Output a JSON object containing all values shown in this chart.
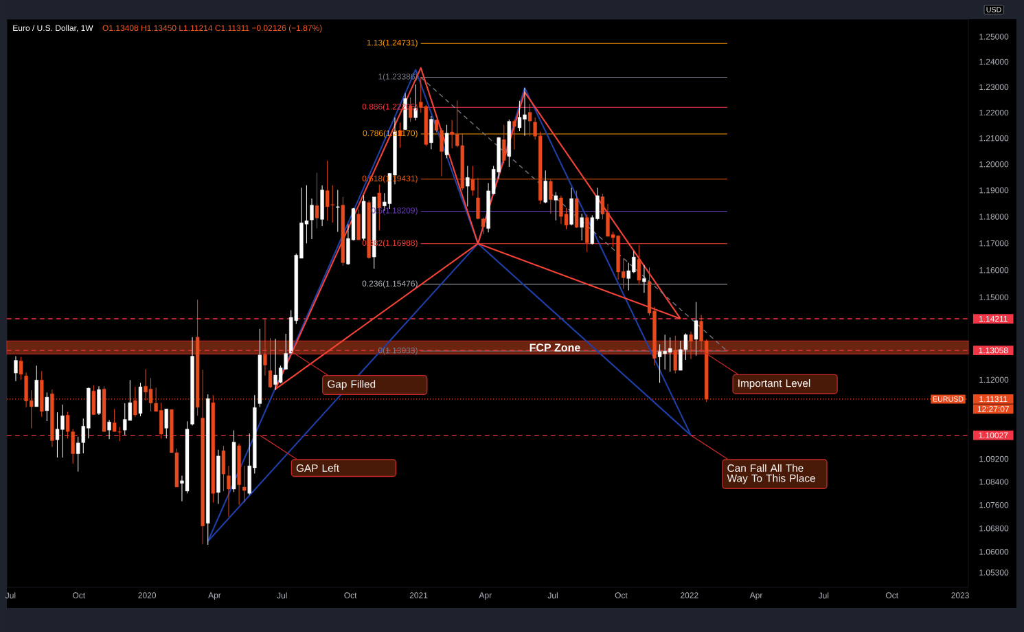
{
  "chart_data": {
    "type": "candlestick",
    "title": "Euro / U.S. Dollar, 1W",
    "subtitle": "O1.13408 H1.13450 L1.11214 C1.11311 −0.02126 (−1.87%)",
    "ylabel": "USD",
    "log": "y",
    "xlim": [
      "2019-06-26",
      "2023-01-12"
    ],
    "ylim": [
      1.048,
      1.257
    ],
    "xticks": [
      {
        "value": "2019-07-01",
        "label": "Jul"
      },
      {
        "value": "2019-10-01",
        "label": "Oct"
      },
      {
        "value": "2020-01-01",
        "label": "2020"
      },
      {
        "value": "2020-04-01",
        "label": "Apr"
      },
      {
        "value": "2020-07-01",
        "label": "Jul"
      },
      {
        "value": "2020-10-01",
        "label": "Oct"
      },
      {
        "value": "2021-01-01",
        "label": "2021"
      },
      {
        "value": "2021-04-01",
        "label": "Apr"
      },
      {
        "value": "2021-07-01",
        "label": "Jul"
      },
      {
        "value": "2021-10-01",
        "label": "Oct"
      },
      {
        "value": "2022-01-01",
        "label": "2022"
      },
      {
        "value": "2022-04-01",
        "label": "Apr"
      },
      {
        "value": "2022-07-01",
        "label": "Jul"
      },
      {
        "value": "2022-10-01",
        "label": "Oct"
      },
      {
        "value": "2023-01-01",
        "label": "2023"
      }
    ],
    "yticks": [
      {
        "value": 1.053,
        "label": "1.05300"
      },
      {
        "value": 1.06,
        "label": "1.06000"
      },
      {
        "value": 1.068,
        "label": "1.06800"
      },
      {
        "value": 1.076,
        "label": "1.07600"
      },
      {
        "value": 1.084,
        "label": "1.08400"
      },
      {
        "value": 1.092,
        "label": "1.09200"
      },
      {
        "value": 1.12,
        "label": "1.12000"
      },
      {
        "value": 1.15,
        "label": "1.15000"
      },
      {
        "value": 1.16,
        "label": "1.16000"
      },
      {
        "value": 1.17,
        "label": "1.17000"
      },
      {
        "value": 1.18,
        "label": "1.18000"
      },
      {
        "value": 1.19,
        "label": "1.19000"
      },
      {
        "value": 1.2,
        "label": "1.20000"
      },
      {
        "value": 1.21,
        "label": "1.21000"
      },
      {
        "value": 1.22,
        "label": "1.22000"
      },
      {
        "value": 1.23,
        "label": "1.23000"
      },
      {
        "value": 1.24,
        "label": "1.24000"
      },
      {
        "value": 1.25,
        "label": "1.25000"
      }
    ],
    "x": [
      "2019-07-08",
      "2019-07-15",
      "2019-07-22",
      "2019-07-29",
      "2019-08-05",
      "2019-08-12",
      "2019-08-19",
      "2019-08-26",
      "2019-09-02",
      "2019-09-09",
      "2019-09-16",
      "2019-09-23",
      "2019-09-30",
      "2019-10-07",
      "2019-10-14",
      "2019-10-21",
      "2019-10-28",
      "2019-11-04",
      "2019-11-11",
      "2019-11-18",
      "2019-11-25",
      "2019-12-02",
      "2019-12-09",
      "2019-12-16",
      "2019-12-23",
      "2019-12-30",
      "2020-01-06",
      "2020-01-13",
      "2020-01-20",
      "2020-01-27",
      "2020-02-03",
      "2020-02-10",
      "2020-02-17",
      "2020-02-24",
      "2020-03-02",
      "2020-03-09",
      "2020-03-16",
      "2020-03-23",
      "2020-03-30",
      "2020-04-06",
      "2020-04-13",
      "2020-04-20",
      "2020-04-27",
      "2020-05-04",
      "2020-05-11",
      "2020-05-18",
      "2020-05-25",
      "2020-06-01",
      "2020-06-08",
      "2020-06-15",
      "2020-06-22",
      "2020-06-29",
      "2020-07-06",
      "2020-07-13",
      "2020-07-20",
      "2020-07-27",
      "2020-08-03",
      "2020-08-10",
      "2020-08-17",
      "2020-08-24",
      "2020-08-31",
      "2020-09-07",
      "2020-09-14",
      "2020-09-21",
      "2020-09-28",
      "2020-10-05",
      "2020-10-12",
      "2020-10-19",
      "2020-10-26",
      "2020-11-02",
      "2020-11-09",
      "2020-11-16",
      "2020-11-23",
      "2020-11-30",
      "2020-12-07",
      "2020-12-14",
      "2020-12-21",
      "2020-12-28",
      "2021-01-04",
      "2021-01-11",
      "2021-01-18",
      "2021-01-25",
      "2021-02-01",
      "2021-02-08",
      "2021-02-15",
      "2021-02-22",
      "2021-03-01",
      "2021-03-08",
      "2021-03-15",
      "2021-03-22",
      "2021-03-29",
      "2021-04-05",
      "2021-04-12",
      "2021-04-19",
      "2021-04-26",
      "2021-05-03",
      "2021-05-10",
      "2021-05-17",
      "2021-05-24",
      "2021-05-31",
      "2021-06-07",
      "2021-06-14",
      "2021-06-21",
      "2021-06-28",
      "2021-07-05",
      "2021-07-12",
      "2021-07-19",
      "2021-07-26",
      "2021-08-02",
      "2021-08-09",
      "2021-08-16",
      "2021-08-23",
      "2021-08-30",
      "2021-09-06",
      "2021-09-13",
      "2021-09-20",
      "2021-09-27",
      "2021-10-04",
      "2021-10-11",
      "2021-10-18",
      "2021-10-25",
      "2021-11-01",
      "2021-11-08",
      "2021-11-15",
      "2021-11-22",
      "2021-11-29",
      "2021-12-06",
      "2021-12-13",
      "2021-12-20",
      "2021-12-27",
      "2022-01-03",
      "2022-01-10",
      "2022-01-17",
      "2022-01-24"
    ],
    "ohlc": [
      [
        1.1224,
        1.1285,
        1.1195,
        1.127
      ],
      [
        1.1268,
        1.1282,
        1.12,
        1.122
      ],
      [
        1.1214,
        1.1226,
        1.1102,
        1.1124
      ],
      [
        1.1126,
        1.1162,
        1.1028,
        1.1104
      ],
      [
        1.1104,
        1.1251,
        1.1104,
        1.1199
      ],
      [
        1.1199,
        1.1231,
        1.1068,
        1.1087
      ],
      [
        1.109,
        1.1155,
        1.1053,
        1.1138
      ],
      [
        1.115,
        1.1165,
        1.0962,
        1.0984
      ],
      [
        1.0987,
        1.1084,
        1.0925,
        1.1025
      ],
      [
        1.1023,
        1.1111,
        1.0925,
        1.1072
      ],
      [
        1.1074,
        1.1086,
        1.0992,
        1.1016
      ],
      [
        1.1015,
        1.1025,
        1.0903,
        1.0938
      ],
      [
        1.0938,
        1.0998,
        1.0876,
        1.0976
      ],
      [
        1.0977,
        1.1062,
        1.094,
        1.1035
      ],
      [
        1.1028,
        1.1172,
        1.0992,
        1.117
      ],
      [
        1.116,
        1.118,
        1.1075,
        1.1076
      ],
      [
        1.108,
        1.1177,
        1.1075,
        1.1165
      ],
      [
        1.1167,
        1.1177,
        1.1016,
        1.1016
      ],
      [
        1.1021,
        1.1057,
        1.0989,
        1.105
      ],
      [
        1.1047,
        1.1096,
        1.1016,
        1.1016
      ],
      [
        1.1015,
        1.1032,
        1.0982,
        1.1014
      ],
      [
        1.1021,
        1.1116,
        1.1004,
        1.1059
      ],
      [
        1.1055,
        1.1199,
        1.1055,
        1.1118
      ],
      [
        1.1126,
        1.1175,
        1.1068,
        1.1075
      ],
      [
        1.108,
        1.1189,
        1.107,
        1.1175
      ],
      [
        1.1177,
        1.1238,
        1.1126,
        1.1156
      ],
      [
        1.1167,
        1.1206,
        1.1087,
        1.1117
      ],
      [
        1.1116,
        1.1172,
        1.1087,
        1.1087
      ],
      [
        1.1091,
        1.1118,
        1.0991,
        1.1007
      ],
      [
        1.1028,
        1.1096,
        1.0992,
        1.1096
      ],
      [
        1.1094,
        1.1094,
        1.0942,
        1.0942
      ],
      [
        1.0942,
        1.0956,
        1.0822,
        1.0822
      ],
      [
        1.0835,
        1.0861,
        1.0773,
        1.0844
      ],
      [
        1.0808,
        1.1052,
        1.08,
        1.1025
      ],
      [
        1.1042,
        1.1354,
        1.1037,
        1.1285
      ],
      [
        1.1354,
        1.1491,
        1.1072,
        1.1102
      ],
      [
        1.1064,
        1.1236,
        1.0626,
        1.0688
      ],
      [
        1.0697,
        1.1148,
        1.0624,
        1.1133
      ],
      [
        1.1118,
        1.1145,
        1.0769,
        1.08
      ],
      [
        1.0803,
        1.0952,
        1.0764,
        1.093
      ],
      [
        1.0949,
        1.0966,
        1.0808,
        1.0867
      ],
      [
        1.0861,
        1.0896,
        1.072,
        1.0815
      ],
      [
        1.0815,
        1.102,
        1.0805,
        1.0979
      ],
      [
        1.0966,
        1.0974,
        1.0761,
        1.083
      ],
      [
        1.0822,
        1.0896,
        1.0769,
        1.081
      ],
      [
        1.08,
        1.1009,
        1.0795,
        1.0896
      ],
      [
        1.0889,
        1.1145,
        1.0869,
        1.1101
      ],
      [
        1.1115,
        1.1384,
        1.1103,
        1.1289
      ],
      [
        1.1291,
        1.1422,
        1.1215,
        1.1253
      ],
      [
        1.1233,
        1.135,
        1.1171,
        1.1174
      ],
      [
        1.1183,
        1.1348,
        1.1163,
        1.1217
      ],
      [
        1.1191,
        1.1251,
        1.1187,
        1.1243
      ],
      [
        1.1238,
        1.1366,
        1.1235,
        1.1295
      ],
      [
        1.1296,
        1.1452,
        1.1295,
        1.1426
      ],
      [
        1.1414,
        1.1661,
        1.1402,
        1.1656
      ],
      [
        1.1644,
        1.191,
        1.1644,
        1.1777
      ],
      [
        1.1772,
        1.1919,
        1.17,
        1.1785
      ],
      [
        1.1788,
        1.1869,
        1.1716,
        1.1844
      ],
      [
        1.1842,
        1.1967,
        1.1756,
        1.1795
      ],
      [
        1.179,
        1.1919,
        1.1765,
        1.1902
      ],
      [
        1.1899,
        1.2014,
        1.1785,
        1.1838
      ],
      [
        1.1846,
        1.1919,
        1.1778,
        1.1844
      ],
      [
        1.1835,
        1.1902,
        1.1743,
        1.1838
      ],
      [
        1.1844,
        1.1875,
        1.1617,
        1.1628
      ],
      [
        1.1623,
        1.1772,
        1.1619,
        1.1718
      ],
      [
        1.1713,
        1.1833,
        1.1711,
        1.1831
      ],
      [
        1.181,
        1.1827,
        1.1713,
        1.1713
      ],
      [
        1.1718,
        1.1882,
        1.1711,
        1.1859
      ],
      [
        1.1854,
        1.1863,
        1.1643,
        1.1646
      ],
      [
        1.1649,
        1.1875,
        1.1606,
        1.1875
      ],
      [
        1.189,
        1.1922,
        1.1749,
        1.1833
      ],
      [
        1.1841,
        1.1889,
        1.1823,
        1.1856
      ],
      [
        1.1849,
        1.1966,
        1.183,
        1.1965
      ],
      [
        1.1958,
        1.218,
        1.1923,
        1.2125
      ],
      [
        1.2131,
        1.2161,
        1.2064,
        1.211
      ],
      [
        1.2134,
        1.2276,
        1.2132,
        1.2255
      ],
      [
        1.2225,
        1.226,
        1.2164,
        1.218
      ],
      [
        1.218,
        1.2311,
        1.217,
        1.2217
      ],
      [
        1.2241,
        1.2339,
        1.2199,
        1.222
      ],
      [
        1.2224,
        1.223,
        1.207,
        1.2076
      ],
      [
        1.2083,
        1.2186,
        1.2058,
        1.2174
      ],
      [
        1.2171,
        1.2173,
        1.2123,
        1.2131
      ],
      [
        1.2131,
        1.214,
        1.1954,
        1.2049
      ],
      [
        1.2036,
        1.2152,
        1.2023,
        1.212
      ],
      [
        1.2125,
        1.2171,
        1.2061,
        1.2114
      ],
      [
        1.2115,
        1.2247,
        1.2065,
        1.2071
      ],
      [
        1.2072,
        1.2119,
        1.19,
        1.1908
      ],
      [
        1.1916,
        1.1994,
        1.1839,
        1.1949
      ],
      [
        1.1942,
        1.1994,
        1.188,
        1.19
      ],
      [
        1.1872,
        1.1947,
        1.179,
        1.1793
      ],
      [
        1.1792,
        1.1797,
        1.1735,
        1.1762
      ],
      [
        1.1756,
        1.1928,
        1.1741,
        1.1898
      ],
      [
        1.1887,
        1.1994,
        1.1885,
        1.1981
      ],
      [
        1.197,
        1.2105,
        1.1945,
        1.2103
      ],
      [
        1.2095,
        1.2152,
        1.2003,
        1.2015
      ],
      [
        1.203,
        1.2173,
        1.199,
        1.2166
      ],
      [
        1.2166,
        1.2173,
        1.2057,
        1.2146
      ],
      [
        1.2141,
        1.2246,
        1.2128,
        1.2182
      ],
      [
        1.2174,
        1.2297,
        1.211,
        1.2192
      ],
      [
        1.2201,
        1.2235,
        1.2108,
        1.2167
      ],
      [
        1.2163,
        1.2181,
        1.2095,
        1.2108
      ],
      [
        1.211,
        1.2126,
        1.1848,
        1.1862
      ],
      [
        1.1855,
        1.1976,
        1.1851,
        1.1936
      ],
      [
        1.1934,
        1.1941,
        1.1812,
        1.1865
      ],
      [
        1.1863,
        1.1893,
        1.1786,
        1.188
      ],
      [
        1.1872,
        1.188,
        1.1773,
        1.1801
      ],
      [
        1.181,
        1.1833,
        1.1753,
        1.1768
      ],
      [
        1.1771,
        1.191,
        1.1767,
        1.1869
      ],
      [
        1.1869,
        1.1899,
        1.1758,
        1.176
      ],
      [
        1.176,
        1.1812,
        1.1711,
        1.1797
      ],
      [
        1.1797,
        1.1808,
        1.1668,
        1.1702
      ],
      [
        1.1699,
        1.1805,
        1.1696,
        1.1797
      ],
      [
        1.1792,
        1.191,
        1.1786,
        1.188
      ],
      [
        1.1876,
        1.1887,
        1.179,
        1.181
      ],
      [
        1.1815,
        1.1848,
        1.1726,
        1.1726
      ],
      [
        1.1733,
        1.1743,
        1.1687,
        1.1721
      ],
      [
        1.1728,
        1.173,
        1.1565,
        1.1593
      ],
      [
        1.1595,
        1.1642,
        1.1531,
        1.1572
      ],
      [
        1.1569,
        1.1627,
        1.1525,
        1.1598
      ],
      [
        1.1593,
        1.1671,
        1.1589,
        1.1649
      ],
      [
        1.1641,
        1.1694,
        1.1548,
        1.1562
      ],
      [
        1.1557,
        1.1619,
        1.1516,
        1.1569
      ],
      [
        1.1558,
        1.161,
        1.1433,
        1.1441
      ],
      [
        1.1449,
        1.1465,
        1.1251,
        1.1277
      ],
      [
        1.1282,
        1.1328,
        1.1189,
        1.1302
      ],
      [
        1.1294,
        1.1363,
        1.1237,
        1.1303
      ],
      [
        1.1299,
        1.1353,
        1.1229,
        1.1313
      ],
      [
        1.1307,
        1.1359,
        1.1223,
        1.1234
      ],
      [
        1.1234,
        1.1341,
        1.1234,
        1.1309
      ],
      [
        1.1309,
        1.1368,
        1.1271,
        1.1363
      ],
      [
        1.1363,
        1.1374,
        1.1274,
        1.1339
      ],
      [
        1.1346,
        1.1482,
        1.1287,
        1.1414
      ],
      [
        1.1412,
        1.1435,
        1.1299,
        1.1341
      ],
      [
        1.13408,
        1.1345,
        1.11214,
        1.11311
      ]
    ],
    "colors": [
      "#ffffff",
      "#e8491d",
      "#e8491d",
      "#e8491d",
      "#ffffff",
      "#e8491d",
      "#ffffff",
      "#e8491d",
      "#ffffff",
      "#ffffff",
      "#e8491d",
      "#e8491d",
      "#ffffff",
      "#ffffff",
      "#ffffff",
      "#e8491d",
      "#ffffff",
      "#e8491d",
      "#ffffff",
      "#e8491d",
      "#e8491d",
      "#ffffff",
      "#ffffff",
      "#e8491d",
      "#ffffff",
      "#e8491d",
      "#e8491d",
      "#e8491d",
      "#e8491d",
      "#ffffff",
      "#e8491d",
      "#e8491d",
      "#ffffff",
      "#ffffff",
      "#ffffff",
      "#e8491d",
      "#e8491d",
      "#ffffff",
      "#e8491d",
      "#ffffff",
      "#e8491d",
      "#e8491d",
      "#ffffff",
      "#e8491d",
      "#e8491d",
      "#ffffff",
      "#ffffff",
      "#ffffff",
      "#e8491d",
      "#e8491d",
      "#ffffff",
      "#ffffff",
      "#ffffff",
      "#ffffff",
      "#ffffff",
      "#ffffff",
      "#ffffff",
      "#ffffff",
      "#e8491d",
      "#ffffff",
      "#e8491d",
      "#e8491d",
      "#ffffff",
      "#e8491d",
      "#ffffff",
      "#ffffff",
      "#e8491d",
      "#ffffff",
      "#e8491d",
      "#ffffff",
      "#e8491d",
      "#ffffff",
      "#ffffff",
      "#ffffff",
      "#e8491d",
      "#ffffff",
      "#e8491d",
      "#ffffff",
      "#e8491d",
      "#e8491d",
      "#ffffff",
      "#e8491d",
      "#e8491d",
      "#ffffff",
      "#e8491d",
      "#e8491d",
      "#e8491d",
      "#ffffff",
      "#e8491d",
      "#e8491d",
      "#e8491d",
      "#ffffff",
      "#ffffff",
      "#ffffff",
      "#e8491d",
      "#ffffff",
      "#e8491d",
      "#ffffff",
      "#ffffff",
      "#e8491d",
      "#e8491d",
      "#e8491d",
      "#ffffff",
      "#e8491d",
      "#ffffff",
      "#e8491d",
      "#e8491d",
      "#ffffff",
      "#e8491d",
      "#ffffff",
      "#e8491d",
      "#ffffff",
      "#ffffff",
      "#e8491d",
      "#e8491d",
      "#e8491d",
      "#e8491d",
      "#e8491d",
      "#ffffff",
      "#ffffff",
      "#e8491d",
      "#ffffff",
      "#e8491d",
      "#e8491d",
      "#ffffff",
      "#ffffff",
      "#ffffff",
      "#e8491d",
      "#ffffff",
      "#ffffff",
      "#e8491d",
      "#ffffff",
      "#e8491d",
      "#e8491d"
    ],
    "series": [
      {
        "type": "line",
        "color": "#1e3fa8",
        "x": [
          "2020-03-23",
          "2020-12-28",
          "2021-03-22",
          "2021-05-24",
          "2022-01-03"
        ],
        "values": [
          1.0636,
          1.2369,
          1.1699,
          1.2297,
          1.1003
        ]
      },
      {
        "type": "line",
        "color": "#1e3fa8",
        "x": [
          "2020-03-23",
          "2021-03-22",
          "2022-01-03"
        ],
        "values": [
          1.0636,
          1.1699,
          1.1003
        ]
      },
      {
        "type": "line",
        "color": "#f44336",
        "x": [
          "2020-06-22",
          "2021-01-04",
          "2021-03-22",
          "2021-05-24",
          "2021-12-20"
        ],
        "values": [
          1.1167,
          1.2376,
          1.1699,
          1.228,
          1.1421
        ]
      },
      {
        "type": "line",
        "color": "#f44336",
        "x": [
          "2020-06-22",
          "2021-03-22",
          "2021-12-20"
        ],
        "values": [
          1.1167,
          1.1699,
          1.1421
        ]
      },
      {
        "type": "line",
        "color": "#787b86",
        "line_style": "dashed",
        "x": [
          "2021-01-04",
          "2022-02-21"
        ],
        "values": [
          1.23386,
          1.13033
        ]
      }
    ],
    "ref_lines": [
      {
        "axis": "y",
        "value": 1.24731,
        "label": "1.13(1.24731)",
        "color": "#ff9800",
        "line_style": "solid"
      },
      {
        "axis": "y",
        "value": 1.23386,
        "label": "1(1.23386)",
        "color": "#787b86",
        "line_style": "solid"
      },
      {
        "axis": "y",
        "value": 1.22205,
        "label": "0.886(1.22205)",
        "color": "#f23645",
        "line_style": "solid"
      },
      {
        "axis": "y",
        "value": 1.2117,
        "label": "0.786(1.21170)",
        "color": "#ff9800",
        "line_style": "solid"
      },
      {
        "axis": "y",
        "value": 1.19431,
        "label": "0.618(1.19431)",
        "color": "#f05a0a",
        "line_style": "solid"
      },
      {
        "axis": "y",
        "value": 1.18209,
        "label": "0.5(1.18209)",
        "color": "#673ab7",
        "line_style": "solid"
      },
      {
        "axis": "y",
        "value": 1.16988,
        "label": "0.382(1.16988)",
        "color": "#f44336",
        "line_style": "solid"
      },
      {
        "axis": "y",
        "value": 1.15476,
        "label": "0.236(1.15476)",
        "color": "#b2b5be",
        "line_style": "solid"
      },
      {
        "axis": "y",
        "value": 1.13033,
        "label": "0(1.13033)",
        "color": "#787b86",
        "line_style": "solid"
      },
      {
        "axis": "y",
        "value": 1.14211,
        "label": "1.14211",
        "color": "#f23645",
        "line_style": "dashed"
      },
      {
        "axis": "y",
        "value": 1.13058,
        "label": "1.13058",
        "color": "#f23645",
        "line_style": "dashed"
      },
      {
        "axis": "y",
        "value": 1.10027,
        "label": "1.10027",
        "color": "#f23645",
        "line_style": "dashed"
      },
      {
        "axis": "y",
        "value": 1.11311,
        "label": "1.11311",
        "color": "#e8491d",
        "line_style": "dotted"
      }
    ],
    "bands": [
      {
        "axis": "y",
        "from": 1.1293,
        "to": 1.134,
        "label": "FCP Zone",
        "color": "#6b2410"
      }
    ],
    "annotations": [
      {
        "text": "Gap Filled",
        "x": "2020-07-13",
        "y": 1.1303
      },
      {
        "text": "GAP Left",
        "x": "2020-06-01",
        "y": 1.1003
      },
      {
        "text": "Important Level",
        "x": "2022-01-17",
        "y": 1.1306
      },
      {
        "text": "Can Fall All The Way To This Place",
        "x": "2022-01-03",
        "y": 1.1003
      },
      {
        "text": "EURUSD",
        "y": 1.11311
      },
      "12:27:07"
    ]
  }
}
